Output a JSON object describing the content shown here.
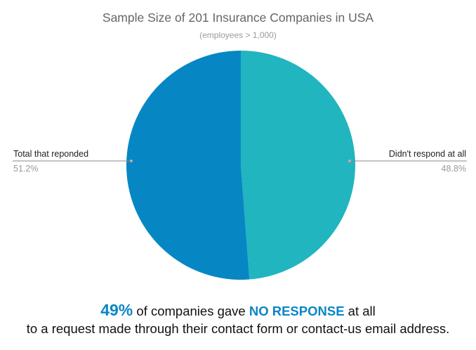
{
  "chart_data": {
    "type": "pie",
    "title": "Sample Size of 201 Insurance Companies in USA",
    "subtitle": "(employees > 1,000)",
    "slices": [
      {
        "label": "Didn't respond at all",
        "value": 48.8,
        "display": "48.8%",
        "color": "#21b5bf"
      },
      {
        "label": "Total that reponded",
        "value": 51.2,
        "display": "51.2%",
        "color": "#0687c4"
      }
    ]
  },
  "caption": {
    "pct": "49%",
    "part1": " of companies gave ",
    "emphasis": "NO RESPONSE",
    "part2": " at all",
    "line2": "to a request made through their contact form or contact-us email address."
  }
}
